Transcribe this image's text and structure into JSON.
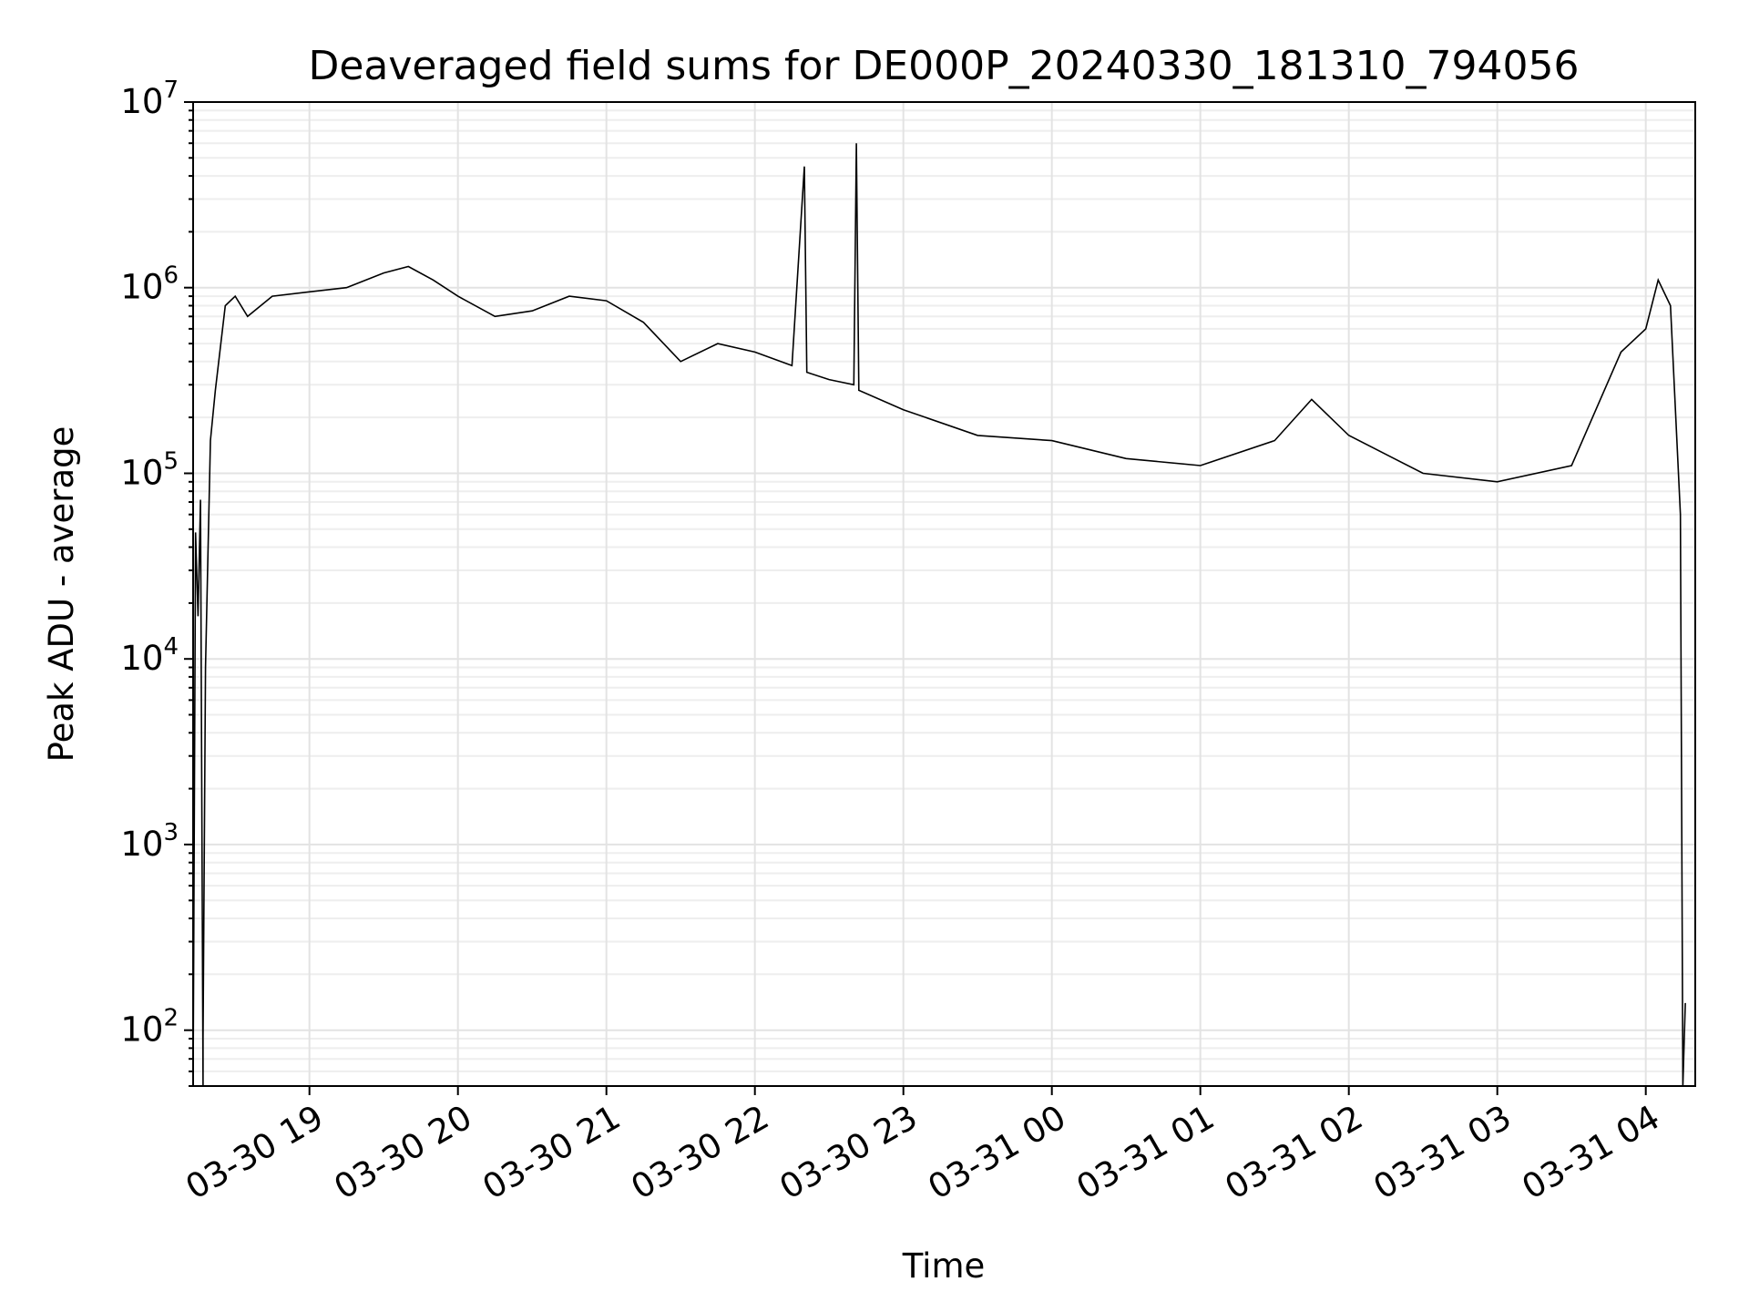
{
  "chart_data": {
    "type": "line",
    "title": "Deaveraged field sums for DE000P_20240330_181310_794056",
    "xlabel": "Time",
    "ylabel": "Peak ADU - average",
    "yscale": "log",
    "ylim": [
      50,
      10000000
    ],
    "xlim": [
      "2024-03-30 18:13",
      "2024-03-31 04:20"
    ],
    "grid": true,
    "x_ticks": [
      {
        "value": "2024-03-30 19:00",
        "label": "03-30 19"
      },
      {
        "value": "2024-03-30 20:00",
        "label": "03-30 20"
      },
      {
        "value": "2024-03-30 21:00",
        "label": "03-30 21"
      },
      {
        "value": "2024-03-30 22:00",
        "label": "03-30 22"
      },
      {
        "value": "2024-03-30 23:00",
        "label": "03-30 23"
      },
      {
        "value": "2024-03-31 00:00",
        "label": "03-31 00"
      },
      {
        "value": "2024-03-31 01:00",
        "label": "03-31 01"
      },
      {
        "value": "2024-03-31 02:00",
        "label": "03-31 02"
      },
      {
        "value": "2024-03-31 03:00",
        "label": "03-31 03"
      },
      {
        "value": "2024-03-31 04:00",
        "label": "03-31 04"
      }
    ],
    "y_ticks": [
      {
        "value": 100,
        "base": "10",
        "exp": "2"
      },
      {
        "value": 1000,
        "base": "10",
        "exp": "3"
      },
      {
        "value": 10000,
        "base": "10",
        "exp": "4"
      },
      {
        "value": 100000,
        "base": "10",
        "exp": "5"
      },
      {
        "value": 1000000,
        "base": "10",
        "exp": "6"
      },
      {
        "value": 10000000,
        "base": "10",
        "exp": "7"
      }
    ],
    "series": [
      {
        "color": "#000000",
        "points": [
          [
            "2024-03-30 18:13",
            50
          ],
          [
            "2024-03-30 18:14",
            48000
          ],
          [
            "2024-03-30 18:15",
            17000
          ],
          [
            "2024-03-30 18:16",
            72000
          ],
          [
            "2024-03-30 18:17",
            50
          ],
          [
            "2024-03-30 18:17",
            90
          ],
          [
            "2024-03-30 18:18",
            9000
          ],
          [
            "2024-03-30 18:20",
            150000
          ],
          [
            "2024-03-30 18:22",
            280000
          ],
          [
            "2024-03-30 18:26",
            800000
          ],
          [
            "2024-03-30 18:30",
            900000
          ],
          [
            "2024-03-30 18:35",
            700000
          ],
          [
            "2024-03-30 18:45",
            900000
          ],
          [
            "2024-03-30 19:00",
            950000
          ],
          [
            "2024-03-30 19:15",
            1000000
          ],
          [
            "2024-03-30 19:30",
            1200000
          ],
          [
            "2024-03-30 19:40",
            1300000
          ],
          [
            "2024-03-30 19:50",
            1100000
          ],
          [
            "2024-03-30 20:00",
            900000
          ],
          [
            "2024-03-30 20:15",
            700000
          ],
          [
            "2024-03-30 20:30",
            750000
          ],
          [
            "2024-03-30 20:45",
            900000
          ],
          [
            "2024-03-30 21:00",
            850000
          ],
          [
            "2024-03-30 21:15",
            650000
          ],
          [
            "2024-03-30 21:30",
            400000
          ],
          [
            "2024-03-30 21:45",
            500000
          ],
          [
            "2024-03-30 22:00",
            450000
          ],
          [
            "2024-03-30 22:15",
            380000
          ],
          [
            "2024-03-30 22:20",
            4500000
          ],
          [
            "2024-03-30 22:21",
            350000
          ],
          [
            "2024-03-30 22:30",
            320000
          ],
          [
            "2024-03-30 22:40",
            300000
          ],
          [
            "2024-03-30 22:41",
            6000000
          ],
          [
            "2024-03-30 22:42",
            280000
          ],
          [
            "2024-03-30 23:00",
            220000
          ],
          [
            "2024-03-30 23:30",
            160000
          ],
          [
            "2024-03-31 00:00",
            150000
          ],
          [
            "2024-03-31 00:30",
            120000
          ],
          [
            "2024-03-31 01:00",
            110000
          ],
          [
            "2024-03-31 01:30",
            150000
          ],
          [
            "2024-03-31 01:45",
            250000
          ],
          [
            "2024-03-31 02:00",
            160000
          ],
          [
            "2024-03-31 02:30",
            100000
          ],
          [
            "2024-03-31 03:00",
            90000
          ],
          [
            "2024-03-31 03:30",
            110000
          ],
          [
            "2024-03-31 03:50",
            450000
          ],
          [
            "2024-03-31 04:00",
            600000
          ],
          [
            "2024-03-31 04:05",
            1100000
          ],
          [
            "2024-03-31 04:10",
            800000
          ],
          [
            "2024-03-31 04:14",
            60000
          ],
          [
            "2024-03-31 04:15",
            50
          ],
          [
            "2024-03-31 04:16",
            140
          ]
        ]
      }
    ]
  }
}
